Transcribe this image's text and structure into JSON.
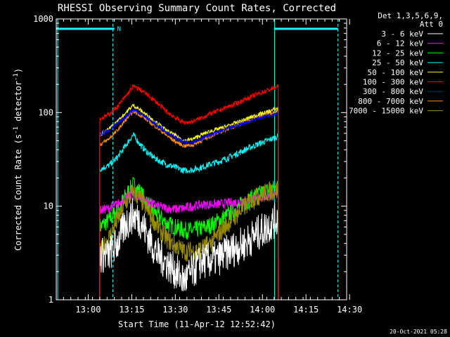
{
  "chart_data": {
    "type": "line",
    "title": "RHESSI Observing Summary Count Rates, Corrected",
    "xlabel": "Start Time (11-Apr-12 12:52:42)",
    "ylabel_main": "Corrected Count Rate (s",
    "ylabel_sup1": "-1",
    "ylabel_mid": " detector",
    "ylabel_sup2": "-1",
    "ylabel_end": ")",
    "yscale": "log",
    "ylim": [
      1,
      1000
    ],
    "xlim_min": [
      -3,
      97
    ],
    "x_tick_minutes": [
      8,
      23,
      38,
      53,
      68,
      83,
      98
    ],
    "x_tick_labels": [
      "13:00",
      "13:15",
      "13:30",
      "13:45",
      "14:00",
      "14:15",
      "14:30"
    ],
    "y_tick_values": [
      1,
      10,
      100,
      1000
    ],
    "y_tick_labels": [
      "1",
      "10",
      "100",
      "1000"
    ],
    "legend_header": [
      "Det 1,3,5,6,9,",
      "Att 0"
    ],
    "legend_position": "right",
    "series": [
      {
        "name": "3 - 6 keV",
        "color": "#ffffff",
        "x": [
          12,
          15,
          18,
          21,
          23.5,
          26,
          29,
          32,
          35,
          38,
          41,
          44,
          47,
          50,
          53,
          56,
          59,
          62,
          65,
          68,
          71,
          73.5
        ],
        "y": [
          3,
          3,
          4,
          6.5,
          8,
          7,
          4.5,
          3,
          2.5,
          2,
          1.6,
          2,
          2.6,
          2.6,
          2.8,
          3.2,
          3.6,
          4,
          4.8,
          5.5,
          6.5,
          7.5
        ]
      },
      {
        "name": "6 - 12 keV",
        "color": "#ff00ff",
        "x": [
          12,
          15,
          18,
          21,
          23.5,
          26,
          29,
          32,
          35,
          38,
          41,
          44,
          47,
          50,
          53,
          56,
          59,
          62,
          65,
          68,
          71,
          73.5
        ],
        "y": [
          9,
          9.5,
          10.5,
          12,
          13.5,
          12.5,
          11,
          10,
          9.5,
          9.3,
          9.5,
          10,
          10.3,
          10.5,
          10.5,
          10.8,
          11,
          11.5,
          12,
          12.5,
          13,
          13.5
        ]
      },
      {
        "name": "12 - 25 keV",
        "color": "#00ff00",
        "x": [
          12,
          15,
          18,
          21,
          23.5,
          26,
          29,
          32,
          35,
          38,
          41,
          44,
          47,
          50,
          53,
          56,
          59,
          62,
          65,
          68,
          71,
          73.5
        ],
        "y": [
          6,
          7,
          9,
          13,
          17,
          14,
          10,
          8,
          6.5,
          6,
          5.5,
          5.5,
          5.8,
          6.2,
          7,
          8,
          9.5,
          11,
          12.5,
          14,
          15,
          16
        ]
      },
      {
        "name": "25 - 50 keV",
        "color": "#00ffff",
        "x": [
          12,
          15,
          18,
          21,
          23.5,
          26,
          29,
          32,
          35,
          38,
          41,
          44,
          47,
          50,
          53,
          56,
          59,
          62,
          65,
          68,
          71,
          73.5
        ],
        "y": [
          25,
          27,
          33,
          45,
          58,
          45,
          36,
          31,
          28,
          26,
          24,
          24.5,
          26,
          28,
          30,
          32.5,
          36,
          40,
          44,
          48,
          52,
          56
        ]
      },
      {
        "name": "50 - 100 keV",
        "color": "#ffff00",
        "x": [
          12,
          15,
          18,
          21,
          23.5,
          26,
          29,
          32,
          35,
          38,
          41,
          44,
          47,
          50,
          53,
          56,
          59,
          62,
          65,
          68,
          71,
          73.5
        ],
        "y": [
          58,
          66,
          80,
          100,
          120,
          106,
          90,
          76,
          64,
          57,
          50,
          52,
          58,
          63,
          67,
          72,
          78,
          84,
          92,
          98,
          105,
          112
        ]
      },
      {
        "name": "100 - 300 keV",
        "color": "#ff0000",
        "x": [
          12,
          15,
          18,
          21,
          23.5,
          26,
          29,
          32,
          35,
          38,
          41,
          44,
          47,
          50,
          53,
          56,
          59,
          62,
          65,
          68,
          71,
          73.5
        ],
        "y": [
          85,
          95,
          115,
          150,
          190,
          175,
          150,
          125,
          102,
          88,
          78,
          80,
          88,
          97,
          105,
          115,
          125,
          138,
          152,
          165,
          178,
          190
        ]
      },
      {
        "name": "300 - 800 keV",
        "color": "#0000ff",
        "x": [
          12,
          15,
          18,
          21,
          23.5,
          26,
          29,
          32,
          35,
          38,
          41,
          44,
          47,
          50,
          53,
          56,
          59,
          62,
          65,
          68,
          71,
          73.5
        ],
        "y": [
          58,
          64,
          76,
          92,
          107,
          98,
          84,
          72,
          62,
          54,
          48,
          49,
          53,
          57,
          62,
          67,
          72,
          78,
          84,
          90,
          95,
          100
        ]
      },
      {
        "name": "800 - 7000 keV",
        "color": "#ff8c00",
        "x": [
          12,
          15,
          18,
          21,
          23.5,
          26,
          29,
          32,
          35,
          38,
          41,
          44,
          47,
          50,
          53,
          56,
          59,
          62,
          65,
          68,
          71,
          73.5
        ],
        "y": [
          45,
          52,
          64,
          84,
          103,
          94,
          80,
          68,
          57,
          49,
          44,
          45,
          50,
          56,
          61,
          67,
          73,
          80,
          87,
          93,
          99,
          105
        ]
      },
      {
        "name": "7000 - 15000 keV",
        "color": "#9a8c00",
        "x": [
          12,
          15,
          18,
          21,
          23.5,
          26,
          29,
          32,
          35,
          38,
          41,
          44,
          47,
          50,
          53,
          56,
          59,
          62,
          65,
          68,
          71,
          73.5
        ],
        "y": [
          3.2,
          4.5,
          7,
          11,
          14,
          12,
          8.5,
          6,
          4.5,
          3.8,
          3.3,
          3.3,
          3.5,
          4,
          5,
          6.5,
          8,
          10,
          12,
          13.5,
          14.5,
          15
        ]
      }
    ],
    "flag_bars": [
      {
        "label": "",
        "x_start": -3,
        "x_end": 17
      },
      {
        "label": "",
        "x_start": 72,
        "x_end": 94
      }
    ],
    "flag_text": "N",
    "event_lines_solid": [
      -2.5,
      72.2
    ],
    "event_lines_dashed": [
      16.5,
      94
    ]
  },
  "footer_timestamp": "20-Oct-2021 05:28"
}
